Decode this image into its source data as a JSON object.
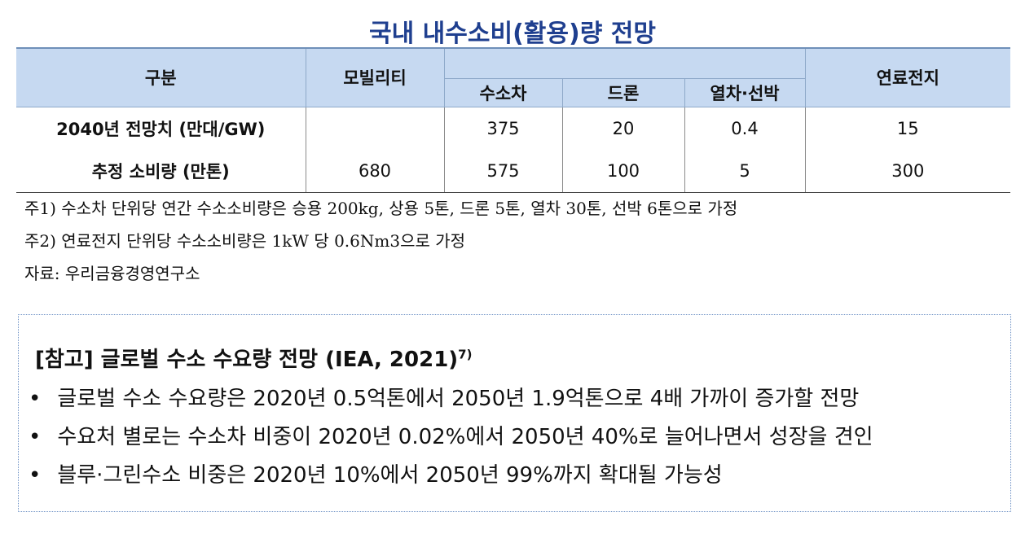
{
  "title": "국내 내수소비(활용)량 전망",
  "table": {
    "header": [
      "구분",
      "모빌리티",
      "연료전지"
    ],
    "subheader": [
      "수소차",
      "드론",
      "열차·선박"
    ],
    "rows": [
      [
        "2040년 전망치 (만대/GW)",
        null,
        "375",
        "20",
        "0.4",
        "15"
      ],
      [
        "추정 소비량 (만톤)",
        "680",
        "575",
        "100",
        "5",
        "300"
      ]
    ]
  },
  "notes": [
    "주1) 수소차 단위당 연간 수소소비량은 승용 200kg, 상용 5톤, 드론 5톤, 열차 30톤, 선박 6톤으로 가정",
    "주2) 연료전지 단위당 수소소비량은 1kW 당 0.6Nm3으로 가정",
    "자료: 우리금융경영연구소"
  ],
  "reference": {
    "title": "[참고] 글로벌 수소 수요량 전망 (IEA, 2021)",
    "footnote": "7)",
    "bullets": [
      "글로벌 수소 수요량은 2020년 0.5억톤에서 2050년 1.9억톤으로 4배 가까이 증가할 전망",
      "수요처 별로는 수소차 비중이 2020년 0.02%에서 2050년 40%로 늘어나면서 성장을 견인",
      "블루·그린수소 비중은 2020년 10%에서 2050년 99%까지 확대될 가능성"
    ]
  }
}
